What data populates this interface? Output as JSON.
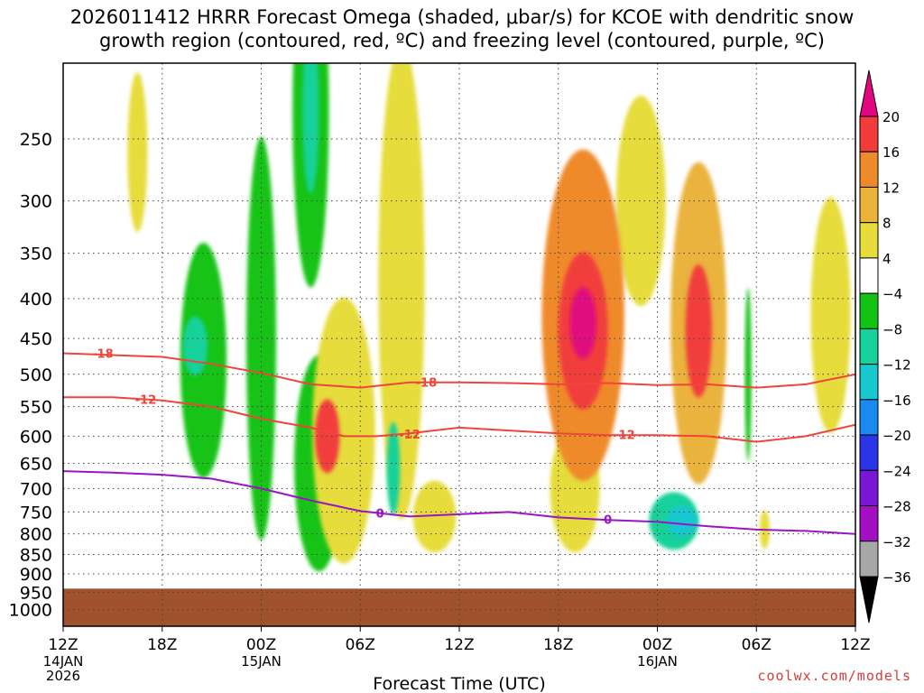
{
  "chart_data": {
    "type": "heatmap",
    "title_line1": "2026011412 HRRR Forecast Omega (shaded, μbar/s) for KCOE with dendritic snow",
    "title_line2": "growth region (contoured, red, ºC) and freezing level (contoured, purple, ºC)",
    "xlabel": "Forecast Time (UTC)",
    "x_ticks": [
      {
        "hour": 0,
        "label": "12Z",
        "sub": [
          "14JAN",
          "2026"
        ]
      },
      {
        "hour": 6,
        "label": "18Z",
        "sub": []
      },
      {
        "hour": 12,
        "label": "00Z",
        "sub": [
          "15JAN"
        ]
      },
      {
        "hour": 18,
        "label": "06Z",
        "sub": []
      },
      {
        "hour": 24,
        "label": "12Z",
        "sub": []
      },
      {
        "hour": 30,
        "label": "18Z",
        "sub": []
      },
      {
        "hour": 36,
        "label": "00Z",
        "sub": [
          "16JAN"
        ]
      },
      {
        "hour": 42,
        "label": "06Z",
        "sub": []
      },
      {
        "hour": 48,
        "label": "12Z",
        "sub": []
      }
    ],
    "xlim": [
      0,
      48
    ],
    "y_ticks": [
      "250",
      "300",
      "350",
      "400",
      "450",
      "500",
      "550",
      "600",
      "650",
      "700",
      "750",
      "800",
      "850",
      "900",
      "950",
      "1000"
    ],
    "ylim_hpa": [
      1050,
      200
    ],
    "ground_top_hpa": 940,
    "colorbar": {
      "levels": [
        "20",
        "16",
        "12",
        "8",
        "4",
        "−4",
        "−8",
        "−12",
        "−16",
        "−20",
        "−24",
        "−28",
        "−32",
        "−36"
      ],
      "colors": [
        "#e0087e",
        "#f23c3c",
        "#ef8a2c",
        "#e9b33c",
        "#e6dc3a",
        "#ffffff",
        "#13c313",
        "#17d19a",
        "#18c8cf",
        "#1a8af0",
        "#2b34e8",
        "#7a17d6",
        "#a50fc2",
        "#a7a7a7",
        "#000000"
      ]
    },
    "isotherm_labels": {
      "dgz_upper": "-18",
      "dgz_lower": "-12",
      "freezing": "0"
    },
    "isotherms": {
      "dgz_upper_hpa": [
        [
          0,
          470
        ],
        [
          6,
          475
        ],
        [
          9,
          485
        ],
        [
          12,
          498
        ],
        [
          15,
          515
        ],
        [
          18,
          520
        ],
        [
          21,
          512
        ],
        [
          24,
          512
        ],
        [
          27,
          513
        ],
        [
          30,
          515
        ],
        [
          33,
          513
        ],
        [
          36,
          516
        ],
        [
          39,
          515
        ],
        [
          42,
          520
        ],
        [
          45,
          515
        ],
        [
          48,
          500
        ]
      ],
      "dgz_lower_hpa": [
        [
          0,
          535
        ],
        [
          3,
          535
        ],
        [
          6,
          540
        ],
        [
          9,
          550
        ],
        [
          12,
          570
        ],
        [
          15,
          585
        ],
        [
          17,
          600
        ],
        [
          19,
          600
        ],
        [
          21,
          595
        ],
        [
          24,
          585
        ],
        [
          27,
          590
        ],
        [
          30,
          595
        ],
        [
          33,
          598
        ],
        [
          36,
          598
        ],
        [
          39,
          600
        ],
        [
          42,
          610
        ],
        [
          45,
          600
        ],
        [
          48,
          580
        ]
      ],
      "freezing_hpa": [
        [
          0,
          665
        ],
        [
          3,
          668
        ],
        [
          6,
          672
        ],
        [
          9,
          680
        ],
        [
          12,
          700
        ],
        [
          15,
          725
        ],
        [
          18,
          748
        ],
        [
          21,
          760
        ],
        [
          24,
          755
        ],
        [
          27,
          750
        ],
        [
          30,
          762
        ],
        [
          33,
          768
        ],
        [
          36,
          772
        ],
        [
          39,
          782
        ],
        [
          42,
          790
        ],
        [
          45,
          793
        ],
        [
          48,
          800
        ]
      ]
    },
    "omega_features": [
      {
        "hour": 4.5,
        "p": 260,
        "value": 5,
        "w": 1.2,
        "h": 120
      },
      {
        "hour": 8.5,
        "p": 480,
        "value": -7,
        "w": 2.8,
        "h": 320
      },
      {
        "hour": 8.0,
        "p": 460,
        "value": -10,
        "w": 1.5,
        "h": 80
      },
      {
        "hour": 12.0,
        "p": 450,
        "value": -6,
        "w": 1.8,
        "h": 480
      },
      {
        "hour": 15.0,
        "p": 230,
        "value": -7,
        "w": 2.2,
        "h": 220
      },
      {
        "hour": 15.0,
        "p": 230,
        "value": -10,
        "w": 1.0,
        "h": 110
      },
      {
        "hour": 15.5,
        "p": 650,
        "value": -6,
        "w": 3.0,
        "h": 400
      },
      {
        "hour": 17.0,
        "p": 590,
        "value": 6,
        "w": 3.8,
        "h": 440
      },
      {
        "hour": 16.0,
        "p": 600,
        "value": 17,
        "w": 1.5,
        "h": 130
      },
      {
        "hour": 20.5,
        "p": 380,
        "value": 5,
        "w": 2.8,
        "h": 460
      },
      {
        "hour": 20.0,
        "p": 660,
        "value": -8,
        "w": 0.8,
        "h": 180
      },
      {
        "hour": 22.5,
        "p": 760,
        "value": 6,
        "w": 2.6,
        "h": 160
      },
      {
        "hour": 31.5,
        "p": 420,
        "value": 12,
        "w": 5.0,
        "h": 380
      },
      {
        "hour": 31.5,
        "p": 440,
        "value": 18,
        "w": 3.0,
        "h": 200
      },
      {
        "hour": 31.5,
        "p": 430,
        "value": 21,
        "w": 1.6,
        "h": 90
      },
      {
        "hour": 31.0,
        "p": 700,
        "value": 5,
        "w": 3.0,
        "h": 260
      },
      {
        "hour": 38.5,
        "p": 430,
        "value": 11,
        "w": 3.4,
        "h": 380
      },
      {
        "hour": 38.5,
        "p": 440,
        "value": 18,
        "w": 1.6,
        "h": 170
      },
      {
        "hour": 37.0,
        "p": 770,
        "value": -9,
        "w": 3.0,
        "h": 130
      },
      {
        "hour": 37.5,
        "p": 770,
        "value": -13,
        "w": 1.8,
        "h": 70
      },
      {
        "hour": 35.0,
        "p": 300,
        "value": 5,
        "w": 3.0,
        "h": 180
      },
      {
        "hour": 46.5,
        "p": 420,
        "value": 5,
        "w": 2.4,
        "h": 280
      },
      {
        "hour": 41.5,
        "p": 500,
        "value": -6,
        "w": 0.4,
        "h": 250
      },
      {
        "hour": 42.5,
        "p": 790,
        "value": 5,
        "w": 0.6,
        "h": 90
      }
    ]
  },
  "credit": "coolwx.com/models"
}
